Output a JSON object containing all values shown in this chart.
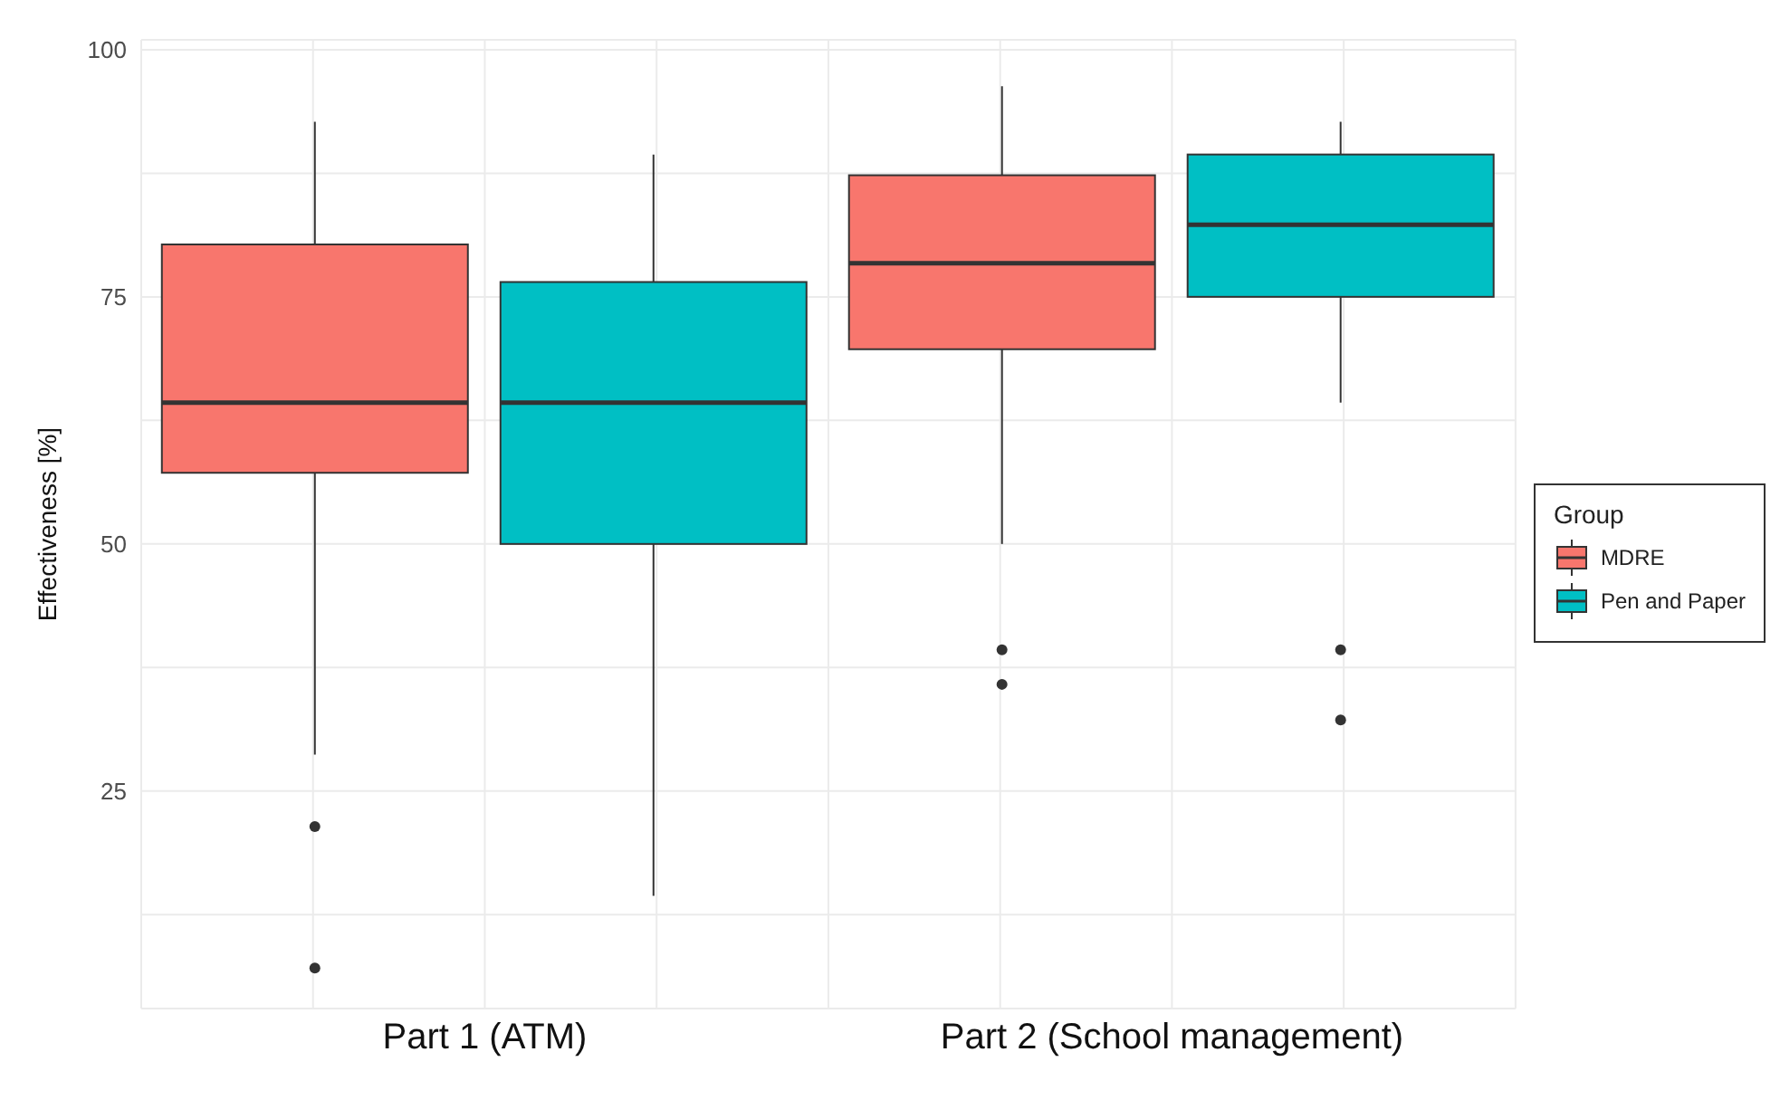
{
  "chart_data": {
    "type": "box",
    "ylabel": "Effectiveness [%]",
    "legend_title": "Group",
    "legend": "right",
    "grid": true,
    "categories": [
      "Part 1 (ATM)",
      "Part 2 (School management)"
    ],
    "ylim": [
      3,
      101
    ],
    "yticks": [
      {
        "value": 12.5,
        "label": null
      },
      25,
      {
        "value": 37.5,
        "label": null
      },
      50,
      {
        "value": 62.5,
        "label": null
      },
      75,
      {
        "value": 87.5,
        "label": null
      },
      100
    ],
    "series": [
      {
        "name": "MDRE",
        "color": "#f8766d",
        "boxes": [
          {
            "low": 28.7,
            "q1": 57.2,
            "median": 64.3,
            "q3": 80.3,
            "high": 92.7,
            "outliers": [
              21.4,
              7.1
            ]
          },
          {
            "low": 50,
            "q1": 69.7,
            "median": 78.4,
            "q3": 87.3,
            "high": 96.3,
            "outliers": [
              39.3,
              35.8
            ]
          }
        ]
      },
      {
        "name": "Pen and Paper",
        "color": "#00bfc4",
        "boxes": [
          {
            "low": 14.4,
            "q1": 50,
            "median": 64.3,
            "q3": 76.5,
            "high": 89.4
          },
          {
            "low": 64.3,
            "q1": 75,
            "median": 82.3,
            "q3": 89.4,
            "high": 92.7,
            "outliers": [
              39.3,
              32.2
            ]
          }
        ]
      }
    ]
  }
}
